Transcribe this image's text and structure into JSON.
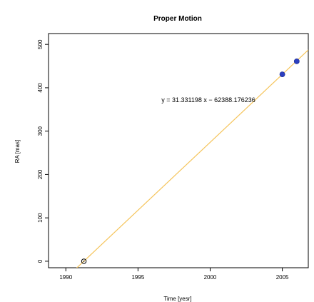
{
  "chart_data": {
    "type": "scatter",
    "title": "Proper Motion",
    "xlabel": "Time [yesr]",
    "ylabel": "RA [mas]",
    "xlim": [
      1988.8,
      2006.8
    ],
    "ylim": [
      -15,
      525
    ],
    "x_ticks": [
      1990,
      1995,
      2000,
      2005
    ],
    "y_ticks": [
      0,
      100,
      200,
      300,
      400,
      500
    ],
    "grid": false,
    "series": [
      {
        "style": "open-circle",
        "color": "#000000",
        "points": [
          {
            "x": 1991.25,
            "y": 0
          }
        ]
      },
      {
        "style": "filled-circle",
        "color": "#2c3fbf",
        "points": [
          {
            "x": 2005.0,
            "y": 431
          },
          {
            "x": 2006.0,
            "y": 461
          }
        ]
      }
    ],
    "fit_line": {
      "slope": 31.331198,
      "intercept": -62388.176236,
      "color": "#f5c45a",
      "equation": "y = 31.331198 x − 62388.176236"
    }
  }
}
